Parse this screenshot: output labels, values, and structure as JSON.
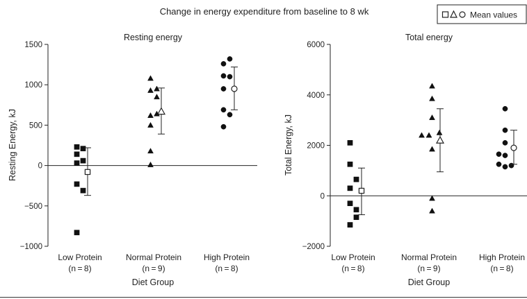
{
  "figure_title": "Change in energy expenditure from baseline to 8 wk",
  "legend": {
    "label": "Mean values",
    "symbols": [
      "open-square",
      "open-triangle",
      "open-circle"
    ]
  },
  "colors": {
    "ink": "#222222",
    "marker": "#111111",
    "background": "#ffffff"
  },
  "chart_data": [
    {
      "type": "scatter",
      "title": "Resting energy",
      "xlabel": "Diet Group",
      "ylabel": "Resting Energy, kJ",
      "ylim": [
        -1000,
        1500
      ],
      "yticks": [
        -1000,
        -500,
        0,
        500,
        1000,
        1500
      ],
      "ytick_labels": [
        "−1000",
        "−500",
        "0",
        "500",
        "1000",
        "1500"
      ],
      "zero_line": true,
      "groups": [
        {
          "name": "Low Protein",
          "n_label": "(n = 8)",
          "marker": "square",
          "points": [
            {
              "offset": -0.3,
              "y": 230
            },
            {
              "offset": 0.3,
              "y": 210
            },
            {
              "offset": -0.3,
              "y": 140
            },
            {
              "offset": 0.3,
              "y": 60
            },
            {
              "offset": -0.3,
              "y": 30
            },
            {
              "offset": -0.3,
              "y": -230
            },
            {
              "offset": 0.3,
              "y": -310
            },
            {
              "offset": -0.3,
              "y": -830
            }
          ],
          "mean": -80,
          "err_low": -370,
          "err_high": 220
        },
        {
          "name": "Normal Protein",
          "n_label": "(n = 9)",
          "marker": "triangle",
          "points": [
            {
              "offset": -0.3,
              "y": 1080
            },
            {
              "offset": 0.3,
              "y": 950
            },
            {
              "offset": -0.3,
              "y": 930
            },
            {
              "offset": 0.3,
              "y": 850
            },
            {
              "offset": -0.3,
              "y": 620
            },
            {
              "offset": 0.3,
              "y": 640
            },
            {
              "offset": -0.3,
              "y": 500
            },
            {
              "offset": -0.3,
              "y": 180
            },
            {
              "offset": -0.3,
              "y": 10
            }
          ],
          "mean": 670,
          "err_low": 390,
          "err_high": 960
        },
        {
          "name": "High Protein",
          "n_label": "(n = 8)",
          "marker": "circle",
          "points": [
            {
              "offset": 0.3,
              "y": 1320
            },
            {
              "offset": -0.3,
              "y": 1260
            },
            {
              "offset": -0.3,
              "y": 1110
            },
            {
              "offset": 0.3,
              "y": 1100
            },
            {
              "offset": -0.3,
              "y": 950
            },
            {
              "offset": -0.3,
              "y": 690
            },
            {
              "offset": 0.3,
              "y": 630
            },
            {
              "offset": -0.3,
              "y": 480
            }
          ],
          "mean": 950,
          "err_low": 690,
          "err_high": 1220
        }
      ]
    },
    {
      "type": "scatter",
      "title": "Total energy",
      "xlabel": "Diet Group",
      "ylabel": "Total Energy, kJ",
      "ylim": [
        -2000,
        6000
      ],
      "yticks": [
        -2000,
        0,
        2000,
        4000,
        6000
      ],
      "ytick_labels": [
        "−2000",
        "0",
        "2000",
        "4000",
        "6000"
      ],
      "zero_line": true,
      "groups": [
        {
          "name": "Low Protein",
          "n_label": "(n = 8)",
          "marker": "square",
          "points": [
            {
              "offset": -0.3,
              "y": 2100
            },
            {
              "offset": -0.3,
              "y": 1250
            },
            {
              "offset": 0.3,
              "y": 650
            },
            {
              "offset": -0.3,
              "y": 300
            },
            {
              "offset": -0.3,
              "y": -300
            },
            {
              "offset": 0.3,
              "y": -550
            },
            {
              "offset": 0.3,
              "y": -850
            },
            {
              "offset": -0.3,
              "y": -1150
            }
          ],
          "mean": 200,
          "err_low": -750,
          "err_high": 1100
        },
        {
          "name": "Normal Protein",
          "n_label": "(n = 9)",
          "marker": "triangle",
          "points": [
            {
              "offset": 0.3,
              "y": 4350
            },
            {
              "offset": 0.3,
              "y": 3850
            },
            {
              "offset": 0.3,
              "y": 3100
            },
            {
              "offset": 1.0,
              "y": 2500
            },
            {
              "offset": -0.7,
              "y": 2400
            },
            {
              "offset": 0.0,
              "y": 2400
            },
            {
              "offset": 0.3,
              "y": 1850
            },
            {
              "offset": 0.3,
              "y": -100
            },
            {
              "offset": 0.3,
              "y": -600
            }
          ],
          "mean": 2200,
          "err_low": 950,
          "err_high": 3450
        },
        {
          "name": "High Protein",
          "n_label": "(n = 8)",
          "marker": "circle",
          "points": [
            {
              "offset": 0.3,
              "y": 3450
            },
            {
              "offset": 0.3,
              "y": 2600
            },
            {
              "offset": 0.3,
              "y": 2100
            },
            {
              "offset": -0.3,
              "y": 1650
            },
            {
              "offset": 0.3,
              "y": 1600
            },
            {
              "offset": -0.3,
              "y": 1250
            },
            {
              "offset": 0.3,
              "y": 1150
            },
            {
              "offset": 0.9,
              "y": 1200
            }
          ],
          "mean": 1900,
          "err_low": 1250,
          "err_high": 2600
        }
      ]
    }
  ]
}
